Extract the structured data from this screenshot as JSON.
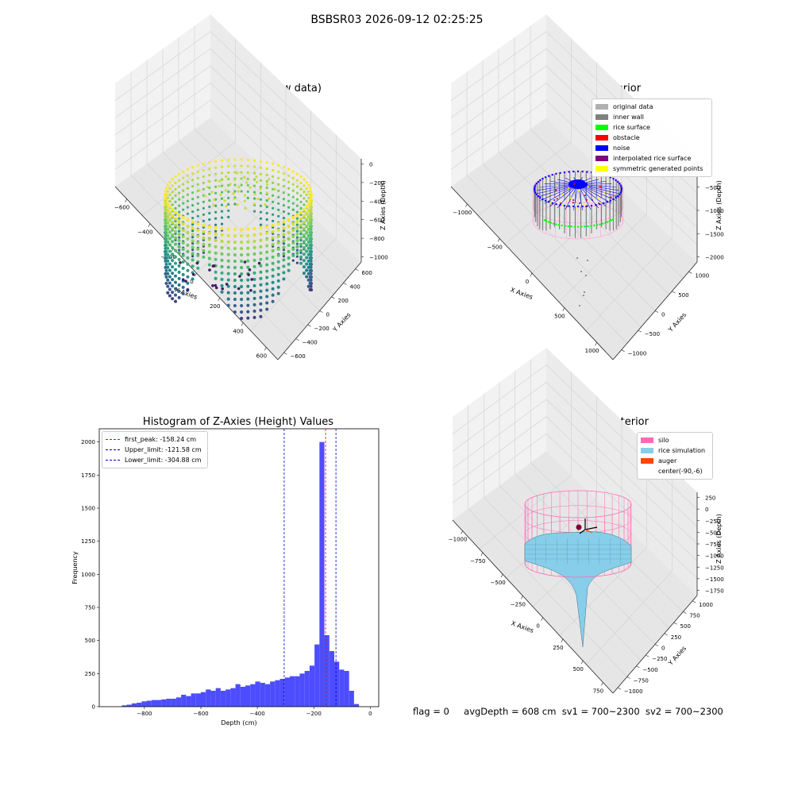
{
  "suptitle": "BSBSR03 2026-09-12 02:25:25",
  "chart_data": [
    {
      "type": "scatter3d",
      "title": "3D Plot of Silo Interior(row data)",
      "xlabel": "X Axies",
      "ylabel": "Y Axies",
      "zlabel": "Z Axies (Depth)",
      "x_ticks": [
        "−600",
        "−400",
        "−200",
        "0",
        "200",
        "400",
        "600"
      ],
      "y_ticks": [
        "−600",
        "−400",
        "−200",
        "0",
        "200",
        "400",
        "600"
      ],
      "z_ticks": [
        "0",
        "−200",
        "−400",
        "−600",
        "−800",
        "−1000"
      ],
      "xlim": [
        -700,
        650
      ],
      "ylim": [
        -700,
        650
      ],
      "zlim": [
        -1050,
        0
      ],
      "colormap": "viridis",
      "shape": "cylindrical wall of points, radius ~600, depth 0 to -1000, sparse points on bottom"
    },
    {
      "type": "scatter3d",
      "title": "3D classify of Silo Interior",
      "xlabel": "X Axies",
      "ylabel": "Y Axies",
      "zlabel": "Z Axies (Depth)",
      "x_ticks": [
        "−1000",
        "−500",
        "0",
        "500",
        "1000"
      ],
      "y_ticks": [
        "−1000",
        "−500",
        "0",
        "500",
        "1000"
      ],
      "z_ticks": [
        "0",
        "−500",
        "−1000",
        "−1500",
        "−2000"
      ],
      "xlim": [
        -1200,
        1200
      ],
      "ylim": [
        -1200,
        1200
      ],
      "zlim": [
        -2200,
        0
      ],
      "legend": [
        {
          "label": "original data",
          "color": "#b0b0b0"
        },
        {
          "label": "inner wall",
          "color": "#808080"
        },
        {
          "label": "rice surface",
          "color": "#00ff00"
        },
        {
          "label": "obstacle",
          "color": "#ff0000"
        },
        {
          "label": "noise",
          "color": "#0000ff"
        },
        {
          "label": "interpolated rice surface",
          "color": "#800080"
        },
        {
          "label": "symmetric generated points",
          "color": "#ffff00"
        }
      ]
    },
    {
      "type": "bar",
      "title": "Histogram of Z-Axies (Height) Values",
      "xlabel": "Depth (cm)",
      "ylabel": "Frequency",
      "xlim": [
        -960,
        30
      ],
      "ylim": [
        0,
        2100
      ],
      "x_ticks": [
        -800,
        -600,
        -400,
        -200,
        0
      ],
      "y_ticks": [
        0,
        250,
        500,
        750,
        1000,
        1250,
        1500,
        1750,
        2000
      ],
      "bar_color": "#4d4dff",
      "bin_start": -880,
      "bin_width": 17.5,
      "values": [
        10,
        15,
        25,
        30,
        40,
        45,
        50,
        50,
        55,
        60,
        60,
        70,
        90,
        80,
        100,
        100,
        110,
        130,
        120,
        140,
        120,
        130,
        140,
        170,
        150,
        160,
        170,
        190,
        180,
        170,
        190,
        200,
        210,
        220,
        230,
        230,
        250,
        270,
        310,
        470,
        2000,
        540,
        420,
        340,
        280,
        270,
        120,
        20
      ],
      "vlines": [
        {
          "label": "first_peak: -158.24 cm",
          "value": -158.24,
          "color": "#ff0000"
        },
        {
          "label": "Upper_limit: -121.58 cm",
          "value": -121.58,
          "color": "#0000cc"
        },
        {
          "label": "Lower_limit: -304.88 cm",
          "value": -304.88,
          "color": "#0000cc"
        }
      ]
    },
    {
      "type": "surface3d",
      "title": "3D simulation of Silo Interior",
      "xlabel": "X Axies",
      "ylabel": "Y Axies",
      "zlabel": "Z Axies (Depth)",
      "x_ticks": [
        "−1000",
        "−750",
        "−500",
        "−250",
        "0",
        "250",
        "500",
        "750"
      ],
      "y_ticks": [
        "−1000",
        "−750",
        "−500",
        "−250",
        "0",
        "250",
        "500",
        "750",
        "1000"
      ],
      "z_ticks": [
        "250",
        "0",
        "−250",
        "−500",
        "−750",
        "−1000",
        "−1250",
        "−1500",
        "−1750"
      ],
      "legend": [
        {
          "label": "silo",
          "color": "#ff69b4"
        },
        {
          "label": "rice simulation",
          "color": "#87ceeb"
        },
        {
          "label": "auger",
          "color": "#ff4500"
        },
        {
          "label": "center(-90,-6)",
          "color": "#ffffff"
        }
      ]
    }
  ],
  "footer": {
    "flag": "flag = 0",
    "avg": "avgDepth = 608 cm",
    "sv1": "sv1 = 700~2300",
    "sv2": "sv2 = 700~2300"
  }
}
